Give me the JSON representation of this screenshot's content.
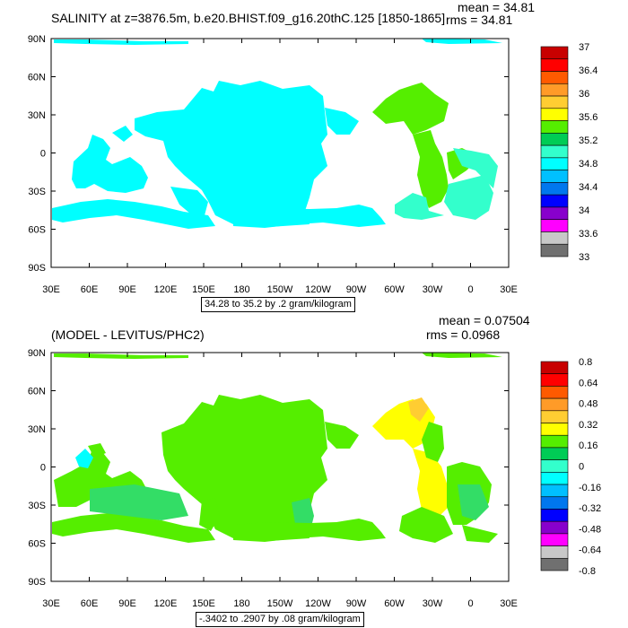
{
  "panels": [
    {
      "title": "SALINITY at z=3876.5m, b.e20.BHIST.f09_g16.20thC.125 [1850-1865]",
      "mean_text": "mean = 34.81",
      "rms_text": "rms = 34.81",
      "footer": "34.28 to 35.2 by .2 gram/kilogram",
      "colorbar_labels": [
        "37",
        "36.4",
        "36",
        "35.6",
        "35.2",
        "34.8",
        "34.4",
        "34",
        "33.6",
        "33"
      ]
    },
    {
      "title": "(MODEL - LEVITUS/PHC2)",
      "mean_text": "mean = 0.07504",
      "rms_text": "rms = 0.0968",
      "footer": "-.3402 to .2907 by .08 gram/kilogram",
      "colorbar_labels": [
        "0.8",
        "0.64",
        "0.48",
        "0.32",
        "0.16",
        "0",
        "-0.16",
        "-0.32",
        "-0.48",
        "-0.64",
        "-0.8"
      ]
    }
  ],
  "axes": {
    "lat_labels": [
      "90N",
      "60N",
      "30N",
      "0",
      "30S",
      "60S",
      "90S"
    ],
    "lon_labels": [
      "30E",
      "60E",
      "90E",
      "120E",
      "150E",
      "180",
      "150W",
      "120W",
      "90W",
      "60W",
      "30W",
      "0",
      "30E"
    ]
  },
  "colors": {
    "colorbar": [
      "#c80000",
      "#ff0000",
      "#ff5a00",
      "#ff9b28",
      "#ffcd32",
      "#ffff00",
      "#55ee00",
      "#00cc55",
      "#33ffcc",
      "#00ffff",
      "#00c0ff",
      "#0077ee",
      "#0000ff",
      "#8800cc",
      "#ff00ff",
      "#c8c8c8",
      "#707070"
    ],
    "salinity_fill": "#00ffff",
    "salinity_fill_atlantic": "#55ee00",
    "salinity_fill_south_atl": "#33ffcc",
    "diff_fill": "#55ee00",
    "diff_fill_pos": "#ffff00",
    "diff_fill_dark": "#33dd66",
    "diff_fill_neg": "#00ffff"
  },
  "chart_data": [
    {
      "type": "heatmap",
      "title": "SALINITY at z=3876.5m, b.e20.BHIST.f09_g16.20thC.125 [1850-1865]",
      "annotations": [
        "mean = 34.81",
        "rms = 34.81"
      ],
      "colorbar_ticks": [
        37,
        36.4,
        36,
        35.6,
        35.2,
        34.8,
        34.4,
        34,
        33.6,
        33
      ],
      "contour_range": "34.28 to 35.2 by .2 gram/kilogram",
      "xticks": [
        "30E",
        "60E",
        "90E",
        "120E",
        "150E",
        "180",
        "150W",
        "120W",
        "90W",
        "60W",
        "30W",
        "0",
        "30E"
      ],
      "yticks": [
        "90N",
        "60N",
        "30N",
        "0",
        "30S",
        "60S",
        "90S"
      ],
      "xlim": [
        30,
        390
      ],
      "ylim": [
        -90,
        90
      ]
    },
    {
      "type": "heatmap",
      "title": "(MODEL - LEVITUS/PHC2)",
      "annotations": [
        "mean = 0.07504",
        "rms = 0.0968"
      ],
      "colorbar_ticks": [
        0.8,
        0.64,
        0.48,
        0.32,
        0.16,
        0,
        -0.16,
        -0.32,
        -0.48,
        -0.64,
        -0.8
      ],
      "contour_range": "-.3402 to .2907 by .08 gram/kilogram",
      "xticks": [
        "30E",
        "60E",
        "90E",
        "120E",
        "150E",
        "180",
        "150W",
        "120W",
        "90W",
        "60W",
        "30W",
        "0",
        "30E"
      ],
      "yticks": [
        "90N",
        "60N",
        "30N",
        "0",
        "30S",
        "60S",
        "90S"
      ],
      "xlim": [
        30,
        390
      ],
      "ylim": [
        -90,
        90
      ]
    }
  ]
}
